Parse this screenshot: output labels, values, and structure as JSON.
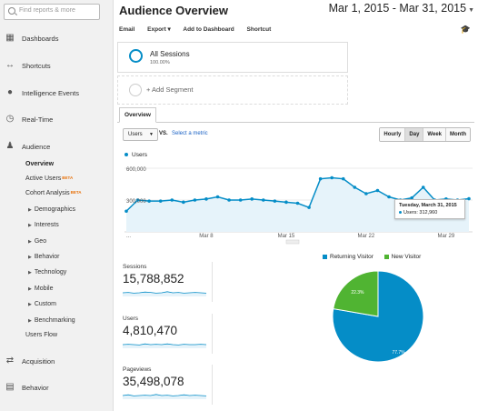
{
  "search": {
    "placeholder": "Find reports & more"
  },
  "sidebar": {
    "items": [
      {
        "label": "Dashboards"
      },
      {
        "label": "Shortcuts"
      },
      {
        "label": "Intelligence Events"
      },
      {
        "label": "Real-Time"
      },
      {
        "label": "Audience"
      },
      {
        "label": "Acquisition"
      },
      {
        "label": "Behavior"
      }
    ],
    "audience_sub": [
      {
        "label": "Overview"
      },
      {
        "label": "Active Users",
        "badge": "BETA"
      },
      {
        "label": "Cohort Analysis",
        "badge": "BETA"
      },
      {
        "label": "Demographics"
      },
      {
        "label": "Interests"
      },
      {
        "label": "Geo"
      },
      {
        "label": "Behavior"
      },
      {
        "label": "Technology"
      },
      {
        "label": "Mobile"
      },
      {
        "label": "Custom"
      },
      {
        "label": "Benchmarking"
      },
      {
        "label": "Users Flow"
      }
    ]
  },
  "header": {
    "title": "Audience Overview",
    "date_range": "Mar 1, 2015 - Mar 31, 2015"
  },
  "toolbar": {
    "email": "Email",
    "export": "Export ▾",
    "add_dashboard": "Add to Dashboard",
    "shortcut": "Shortcut"
  },
  "segments": {
    "all_sessions": "All Sessions",
    "all_pct": "100.00%",
    "add_segment": "+ Add Segment"
  },
  "tabs": {
    "overview": "Overview"
  },
  "controls": {
    "metric": "Users",
    "vs": "VS.",
    "select_metric": "Select a metric",
    "granularity": [
      "Hourly",
      "Day",
      "Week",
      "Month"
    ],
    "granularity_active": "Day"
  },
  "colors": {
    "accent": "#058dc7",
    "new_visitor": "#50b432"
  },
  "chart_data": [
    {
      "type": "line",
      "series": [
        {
          "name": "Users",
          "values": [
            195000,
            300000,
            290000,
            290000,
            300000,
            280000,
            300000,
            310000,
            330000,
            300000,
            300000,
            310000,
            300000,
            290000,
            280000,
            270000,
            230000,
            500000,
            510000,
            500000,
            420000,
            360000,
            390000,
            330000,
            300000,
            320000,
            420000,
            300000,
            310000,
            300000,
            312960
          ]
        }
      ],
      "x_tick_labels": [
        "...",
        "Mar 8",
        "Mar 15",
        "Mar 22",
        "Mar 29"
      ],
      "y_tick_labels": [
        "600,000",
        "300,000"
      ],
      "tooltip": {
        "date": "Tuesday, March 31, 2015",
        "text": "Users: 312,960"
      }
    },
    {
      "type": "pie",
      "slices": [
        {
          "name": "Returning Visitor",
          "value": 77.7,
          "label": "77.7%",
          "color": "#058dc7"
        },
        {
          "name": "New Visitor",
          "value": 22.3,
          "label": "22.3%",
          "color": "#50b432"
        }
      ]
    }
  ],
  "stats": [
    {
      "label": "Sessions",
      "value": "15,788,852"
    },
    {
      "label": "Users",
      "value": "4,810,470"
    },
    {
      "label": "Pageviews",
      "value": "35,498,078"
    }
  ]
}
